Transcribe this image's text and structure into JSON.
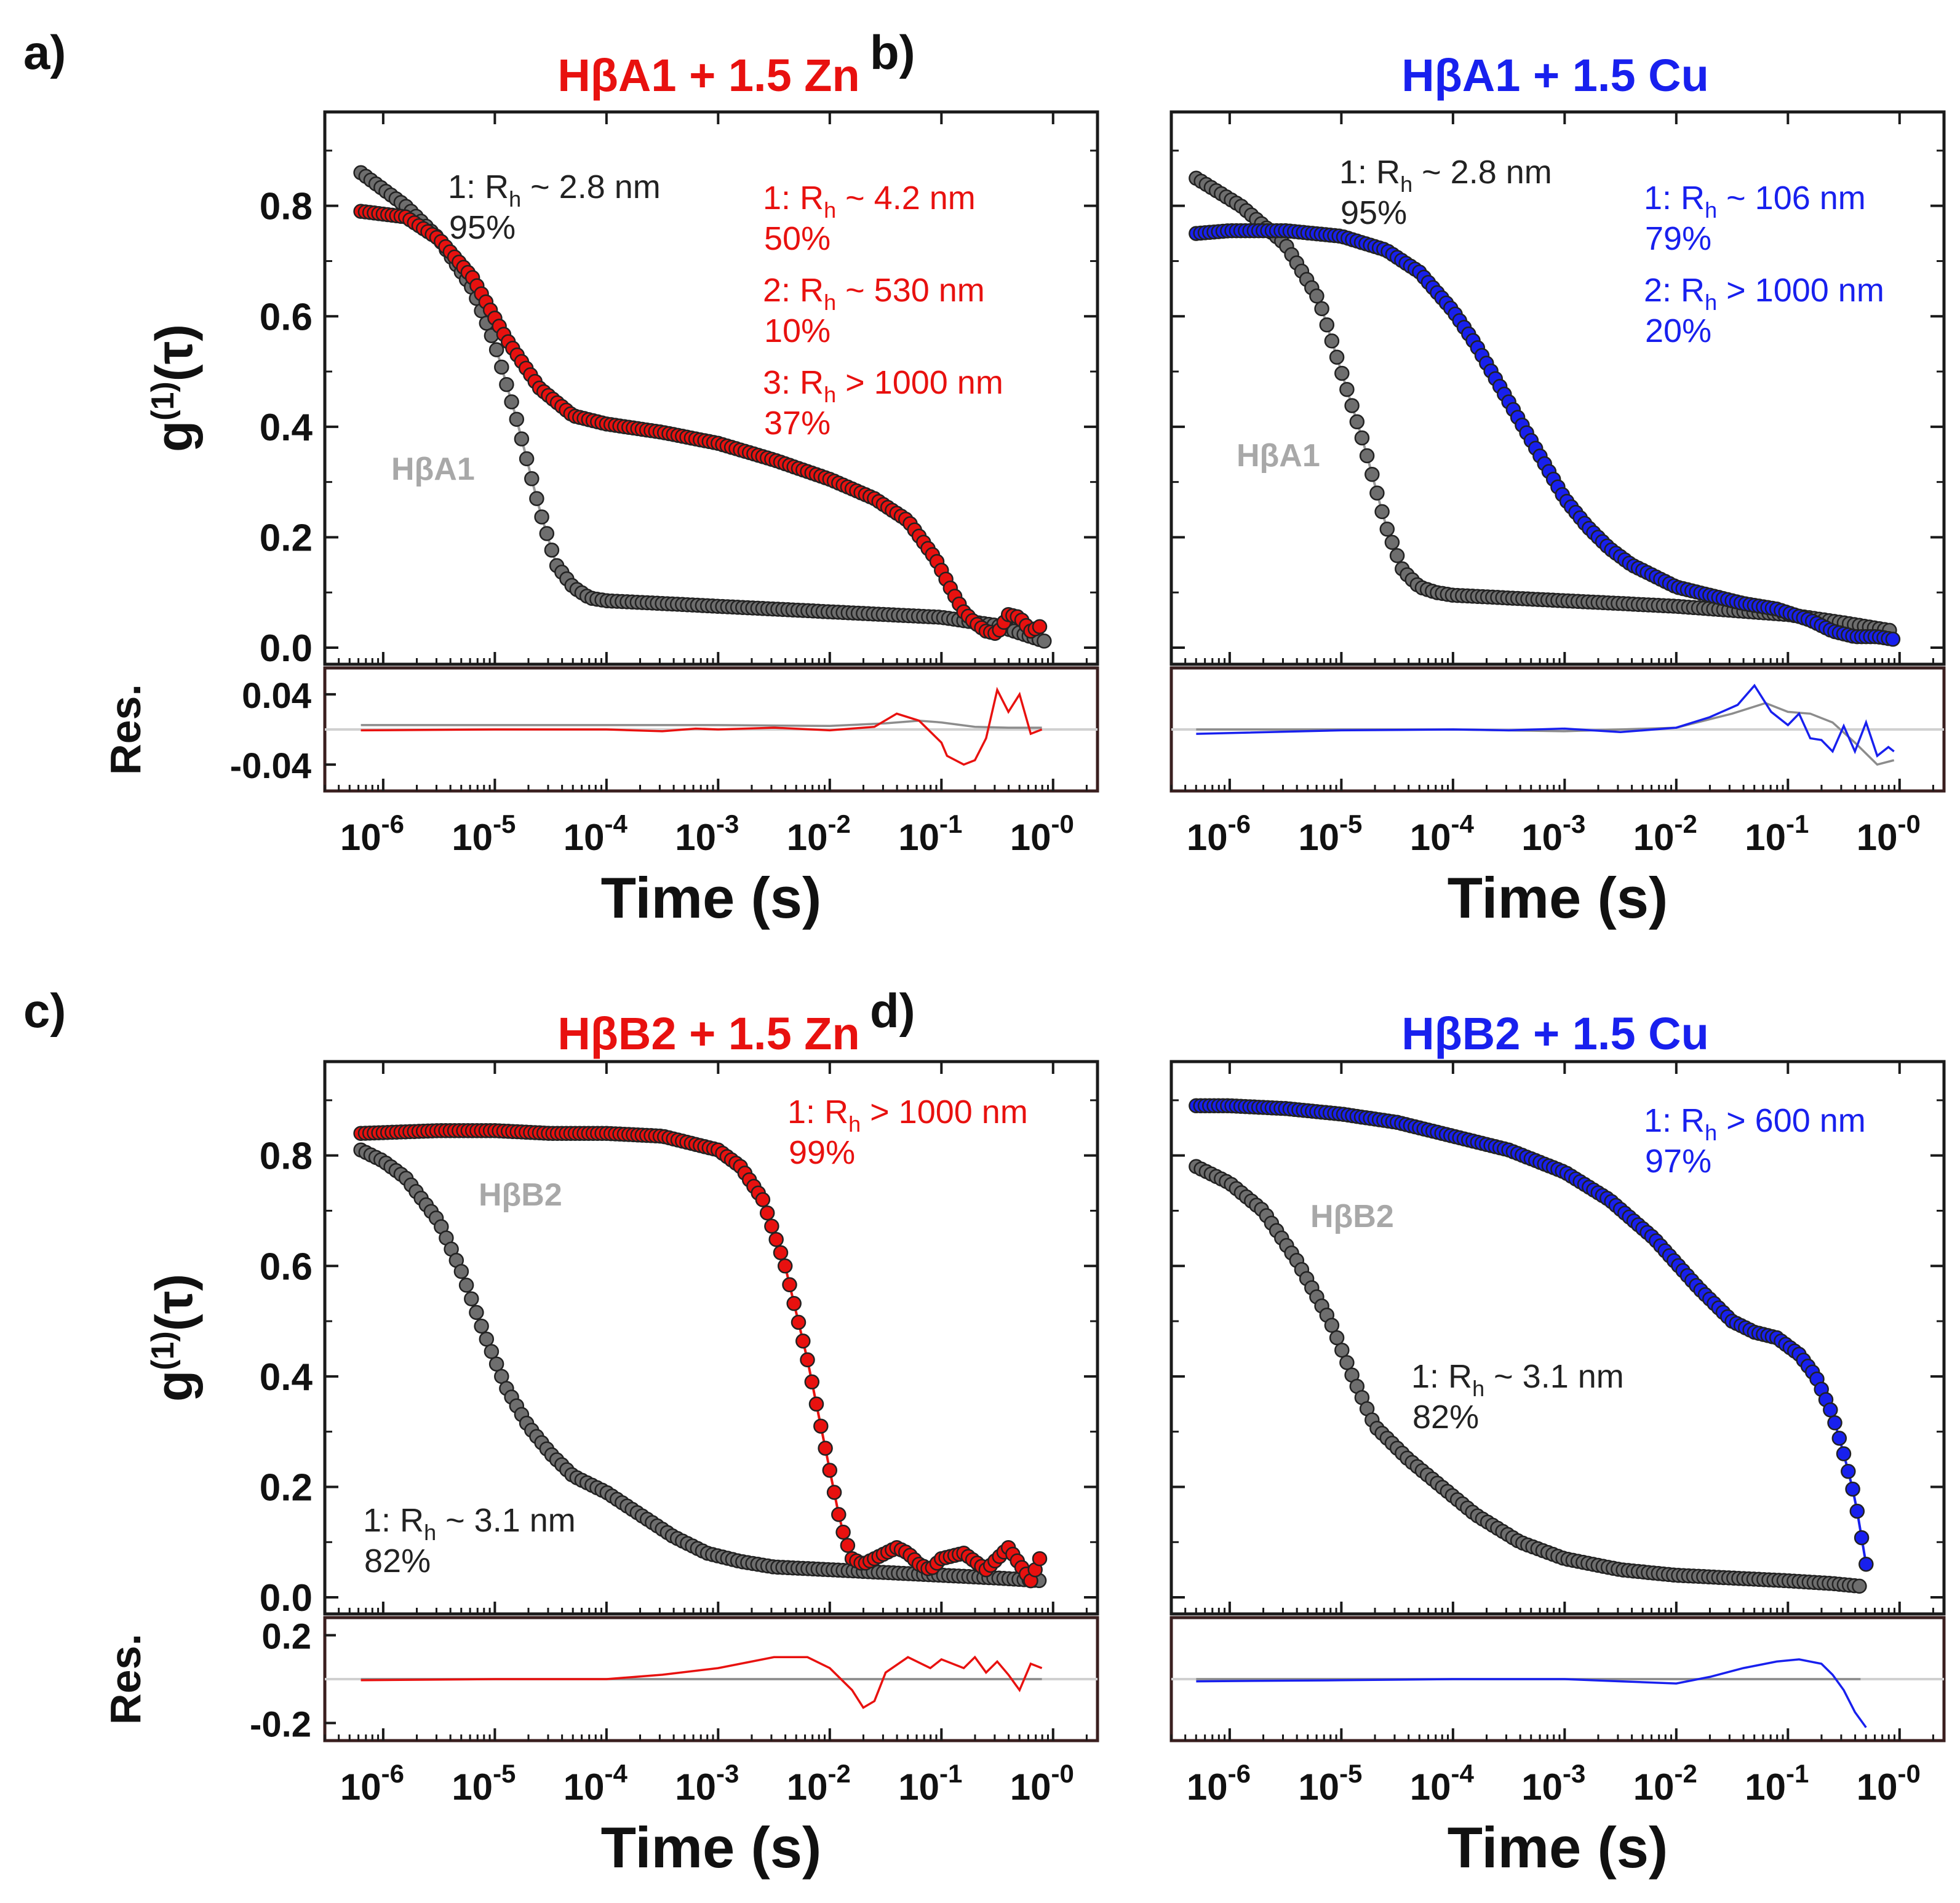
{
  "colors": {
    "zinc": "#e8110f",
    "copper": "#1820ee",
    "apo": "#777777",
    "apo_fill": "#6e6e6e",
    "apo_line": "#9a9a9a",
    "frame": "#1a1a1a",
    "res_frame": "#3a1f1f"
  },
  "common": {
    "y_label_main": "g",
    "y_label_sup": "(1)",
    "y_label_tail": "(τ)",
    "res_label": "Res.",
    "x_label": "Time (s)",
    "x_tick_base": "10",
    "x_tick_exponents": [
      "-6",
      "-5",
      "-4",
      "-3",
      "-2",
      "-1",
      "-0"
    ],
    "y_ticks": [
      "0.0",
      "0.2",
      "0.4",
      "0.6",
      "0.8"
    ]
  },
  "chart_data": [
    {
      "type": "scatter",
      "panel_letter": "a)",
      "title": "HβA1 + 1.5 Zn",
      "title_color": "#e8110f",
      "xlabel": "Time (s)",
      "ylabel": "g(1)(τ)",
      "xscale": "log",
      "xlim": [
        3e-07,
        2.5
      ],
      "ylim": [
        -0.03,
        0.97
      ],
      "apo_label": "HβA1",
      "res_ticks": [
        "0.04",
        "-0.04"
      ],
      "res_tick_values": [
        0.04,
        -0.04
      ],
      "res_lim": [
        -0.07,
        0.07
      ],
      "annotations": [
        {
          "group": "apo",
          "lines": [
            {
              "n": "1",
              "rel": "~",
              "value": "2.8 nm"
            }
          ],
          "percent": "95%"
        },
        {
          "group": "metal",
          "lines": [
            {
              "n": "1",
              "rel": "~",
              "value": "4.2 nm"
            }
          ],
          "percent": "50%"
        },
        {
          "group": "metal",
          "lines": [
            {
              "n": "2",
              "rel": "~",
              "value": "530 nm"
            }
          ],
          "percent": "10%"
        },
        {
          "group": "metal",
          "lines": [
            {
              "n": "3",
              "rel": ">",
              "value": "1000 nm"
            }
          ],
          "percent": "37%"
        }
      ],
      "series": [
        {
          "name": "HβA1",
          "role": "apo",
          "log_t": [
            -6.2,
            -5.8,
            -5.5,
            -5.2,
            -5.0,
            -4.8,
            -4.6,
            -4.45,
            -4.3,
            -4.15,
            -4.0,
            -3.5,
            -3.0,
            -2.0,
            -1.0,
            -0.5,
            -0.2,
            -0.05
          ],
          "g": [
            0.86,
            0.8,
            0.74,
            0.65,
            0.55,
            0.41,
            0.25,
            0.15,
            0.11,
            0.09,
            0.085,
            0.08,
            0.075,
            0.065,
            0.055,
            0.04,
            0.02,
            0.01
          ]
        },
        {
          "name": "HβA1 + 1.5 Zn",
          "role": "metal",
          "log_t": [
            -6.2,
            -5.8,
            -5.5,
            -5.2,
            -4.9,
            -4.6,
            -4.3,
            -4.0,
            -3.5,
            -3.0,
            -2.5,
            -2.0,
            -1.6,
            -1.3,
            -1.05,
            -0.9,
            -0.8,
            -0.7,
            -0.6,
            -0.5,
            -0.4,
            -0.3,
            -0.2,
            -0.1
          ],
          "g": [
            0.79,
            0.78,
            0.74,
            0.67,
            0.56,
            0.47,
            0.42,
            0.405,
            0.39,
            0.37,
            0.34,
            0.305,
            0.27,
            0.23,
            0.16,
            0.1,
            0.065,
            0.045,
            0.03,
            0.025,
            0.06,
            0.055,
            0.03,
            0.04
          ]
        }
      ],
      "residuals": [
        {
          "name": "apo",
          "log_t": [
            -6.2,
            -5.0,
            -4.0,
            -3.0,
            -2.0,
            -1.5,
            -1.2,
            -1.0,
            -0.7,
            -0.4,
            -0.1
          ],
          "r": [
            0.005,
            0.005,
            0.005,
            0.005,
            0.004,
            0.007,
            0.01,
            0.008,
            0.003,
            0.002,
            0.002
          ]
        },
        {
          "name": "metal",
          "log_t": [
            -6.2,
            -5.0,
            -4.0,
            -3.5,
            -3.2,
            -3.0,
            -2.5,
            -2.0,
            -1.6,
            -1.4,
            -1.2,
            -1.0,
            -0.95,
            -0.8,
            -0.7,
            -0.6,
            -0.5,
            -0.4,
            -0.3,
            -0.2,
            -0.1
          ],
          "r": [
            -0.001,
            0.0,
            0.0,
            -0.002,
            0.001,
            0.0,
            0.002,
            -0.001,
            0.003,
            0.018,
            0.01,
            -0.015,
            -0.03,
            -0.04,
            -0.035,
            -0.01,
            0.045,
            0.02,
            0.04,
            -0.005,
            0.0
          ]
        }
      ]
    },
    {
      "type": "scatter",
      "panel_letter": "b)",
      "title": "HβA1 + 1.5 Cu",
      "title_color": "#1820ee",
      "xlabel": "Time (s)",
      "ylabel": "g(1)(τ)",
      "xscale": "log",
      "xlim": [
        3e-07,
        2.5
      ],
      "ylim": [
        -0.03,
        0.97
      ],
      "apo_label": "HβA1",
      "res_ticks": [],
      "res_tick_values": [],
      "res_lim": [
        -0.07,
        0.07
      ],
      "annotations": [
        {
          "group": "apo",
          "lines": [
            {
              "n": "1",
              "rel": "~",
              "value": "2.8 nm"
            }
          ],
          "percent": "95%"
        },
        {
          "group": "metal",
          "lines": [
            {
              "n": "1",
              "rel": "~",
              "value": "106 nm"
            }
          ],
          "percent": "79%"
        },
        {
          "group": "metal",
          "lines": [
            {
              "n": "2",
              "rel": ">",
              "value": "1000 nm"
            }
          ],
          "percent": "20%"
        }
      ],
      "series": [
        {
          "name": "HβA1",
          "role": "apo",
          "log_t": [
            -6.3,
            -5.9,
            -5.5,
            -5.2,
            -5.0,
            -4.8,
            -4.6,
            -4.45,
            -4.3,
            -4.15,
            -4.0,
            -3.5,
            -3.0,
            -2.0,
            -1.0,
            -0.5,
            -0.2,
            -0.05
          ],
          "g": [
            0.85,
            0.8,
            0.73,
            0.63,
            0.5,
            0.37,
            0.22,
            0.14,
            0.11,
            0.1,
            0.095,
            0.09,
            0.085,
            0.075,
            0.06,
            0.045,
            0.035,
            0.03
          ]
        },
        {
          "name": "HβA1 + 1.5 Cu",
          "role": "metal",
          "log_t": [
            -6.3,
            -6.0,
            -5.5,
            -5.0,
            -4.6,
            -4.3,
            -4.0,
            -3.8,
            -3.6,
            -3.4,
            -3.2,
            -3.0,
            -2.8,
            -2.6,
            -2.4,
            -2.2,
            -2.0,
            -1.7,
            -1.4,
            -1.1,
            -0.8,
            -0.6,
            -0.4,
            -0.2,
            -0.05
          ],
          "g": [
            0.75,
            0.755,
            0.755,
            0.745,
            0.72,
            0.68,
            0.61,
            0.55,
            0.48,
            0.41,
            0.34,
            0.27,
            0.22,
            0.18,
            0.15,
            0.13,
            0.11,
            0.095,
            0.08,
            0.07,
            0.05,
            0.03,
            0.02,
            0.02,
            0.015
          ]
        }
      ],
      "residuals": [
        {
          "name": "apo",
          "log_t": [
            -6.3,
            -5.0,
            -4.0,
            -3.0,
            -2.0,
            -1.5,
            -1.2,
            -1.0,
            -0.8,
            -0.6,
            -0.4,
            -0.2,
            -0.05
          ],
          "r": [
            0.0,
            0.0,
            0.0,
            -0.002,
            0.002,
            0.018,
            0.03,
            0.02,
            0.018,
            0.008,
            -0.015,
            -0.04,
            -0.035
          ]
        },
        {
          "name": "metal",
          "log_t": [
            -6.3,
            -5.0,
            -4.0,
            -3.5,
            -3.0,
            -2.5,
            -2.0,
            -1.7,
            -1.45,
            -1.3,
            -1.15,
            -1.0,
            -0.9,
            -0.8,
            -0.7,
            -0.6,
            -0.5,
            -0.4,
            -0.3,
            -0.2,
            -0.1,
            -0.05
          ],
          "r": [
            -0.005,
            -0.001,
            0.0,
            -0.001,
            0.001,
            -0.003,
            0.002,
            0.014,
            0.028,
            0.05,
            0.02,
            0.005,
            0.018,
            -0.01,
            -0.012,
            -0.025,
            0.004,
            -0.025,
            0.008,
            -0.03,
            -0.02,
            -0.025
          ]
        }
      ]
    },
    {
      "type": "scatter",
      "panel_letter": "c)",
      "title": "HβB2 + 1.5 Zn",
      "title_color": "#e8110f",
      "xlabel": "Time (s)",
      "ylabel": "g(1)(τ)",
      "xscale": "log",
      "xlim": [
        3e-07,
        2.5
      ],
      "ylim": [
        -0.03,
        0.97
      ],
      "apo_label": "HβB2",
      "res_ticks": [
        "0.2",
        "-0.2"
      ],
      "res_tick_values": [
        0.2,
        -0.2
      ],
      "res_lim": [
        -0.28,
        0.28
      ],
      "annotations": [
        {
          "group": "metal",
          "lines": [
            {
              "n": "1",
              "rel": ">",
              "value": "1000 nm"
            }
          ],
          "percent": "99%"
        },
        {
          "group": "apo",
          "lines": [
            {
              "n": "1",
              "rel": "~",
              "value": "3.1 nm"
            }
          ],
          "percent": "82%"
        }
      ],
      "series": [
        {
          "name": "HβB2",
          "role": "apo",
          "log_t": [
            -6.2,
            -6.0,
            -5.8,
            -5.5,
            -5.3,
            -5.1,
            -4.9,
            -4.7,
            -4.5,
            -4.3,
            -4.0,
            -3.7,
            -3.4,
            -3.1,
            -2.8,
            -2.5,
            -2.0,
            -1.5,
            -1.0,
            -0.5,
            -0.1
          ],
          "g": [
            0.81,
            0.79,
            0.76,
            0.68,
            0.59,
            0.48,
            0.38,
            0.31,
            0.26,
            0.22,
            0.19,
            0.15,
            0.11,
            0.08,
            0.065,
            0.055,
            0.05,
            0.045,
            0.04,
            0.035,
            0.03
          ]
        },
        {
          "name": "HβB2 + 1.5 Zn",
          "role": "metal",
          "log_t": [
            -6.2,
            -5.5,
            -5.0,
            -4.5,
            -4.0,
            -3.5,
            -3.0,
            -2.8,
            -2.6,
            -2.4,
            -2.2,
            -2.1,
            -2.0,
            -1.9,
            -1.8,
            -1.7,
            -1.6,
            -1.5,
            -1.4,
            -1.3,
            -1.2,
            -1.1,
            -1.0,
            -0.8,
            -0.6,
            -0.4,
            -0.3,
            -0.2,
            -0.1
          ],
          "g": [
            0.84,
            0.845,
            0.845,
            0.84,
            0.84,
            0.835,
            0.81,
            0.78,
            0.72,
            0.6,
            0.43,
            0.33,
            0.23,
            0.13,
            0.07,
            0.06,
            0.07,
            0.08,
            0.09,
            0.08,
            0.06,
            0.05,
            0.07,
            0.08,
            0.05,
            0.09,
            0.06,
            0.03,
            0.08
          ]
        }
      ],
      "residuals": [
        {
          "name": "apo",
          "log_t": [
            -6.2,
            -5.0,
            -4.0,
            -3.0,
            -2.0,
            -1.0,
            -0.5,
            -0.1
          ],
          "r": [
            0.0,
            0.0,
            0.0,
            0.0,
            0.0,
            0.0,
            0.0,
            0.0
          ]
        },
        {
          "name": "metal",
          "log_t": [
            -6.2,
            -5.0,
            -4.0,
            -3.5,
            -3.0,
            -2.5,
            -2.2,
            -2.0,
            -1.8,
            -1.7,
            -1.6,
            -1.5,
            -1.3,
            -1.1,
            -1.0,
            -0.8,
            -0.7,
            -0.6,
            -0.5,
            -0.4,
            -0.3,
            -0.2,
            -0.1
          ],
          "r": [
            -0.005,
            0.0,
            0.0,
            0.02,
            0.05,
            0.1,
            0.1,
            0.05,
            -0.05,
            -0.13,
            -0.1,
            0.03,
            0.1,
            0.05,
            0.09,
            0.05,
            0.1,
            0.03,
            0.08,
            0.02,
            -0.05,
            0.07,
            0.05
          ]
        }
      ]
    },
    {
      "type": "scatter",
      "panel_letter": "d)",
      "title": "HβB2 + 1.5 Cu",
      "title_color": "#1820ee",
      "xlabel": "Time (s)",
      "ylabel": "g(1)(τ)",
      "xscale": "log",
      "xlim": [
        3e-07,
        2.5
      ],
      "ylim": [
        -0.03,
        0.97
      ],
      "apo_label": "HβB2",
      "res_ticks": [],
      "res_tick_values": [],
      "res_lim": [
        -0.28,
        0.28
      ],
      "annotations": [
        {
          "group": "metal",
          "lines": [
            {
              "n": "1",
              "rel": ">",
              "value": "600 nm"
            }
          ],
          "percent": "97%"
        },
        {
          "group": "apo",
          "lines": [
            {
              "n": "1",
              "rel": "~",
              "value": "3.1 nm"
            }
          ],
          "percent": "82%"
        }
      ],
      "series": [
        {
          "name": "HβB2",
          "role": "apo",
          "log_t": [
            -6.3,
            -6.0,
            -5.7,
            -5.4,
            -5.1,
            -4.9,
            -4.7,
            -4.4,
            -4.1,
            -3.8,
            -3.4,
            -3.0,
            -2.5,
            -2.0,
            -1.5,
            -1.0,
            -0.6,
            -0.35
          ],
          "g": [
            0.78,
            0.75,
            0.7,
            0.61,
            0.5,
            0.4,
            0.31,
            0.25,
            0.2,
            0.15,
            0.1,
            0.07,
            0.05,
            0.04,
            0.035,
            0.03,
            0.025,
            0.02
          ]
        },
        {
          "name": "HβB2 + 1.5 Cu",
          "role": "metal",
          "log_t": [
            -6.3,
            -6.0,
            -5.5,
            -5.0,
            -4.5,
            -4.0,
            -3.5,
            -3.0,
            -2.6,
            -2.2,
            -1.8,
            -1.5,
            -1.3,
            -1.1,
            -0.9,
            -0.75,
            -0.6,
            -0.5,
            -0.45,
            -0.4,
            -0.35,
            -0.3
          ],
          "g": [
            0.89,
            0.89,
            0.885,
            0.875,
            0.86,
            0.835,
            0.81,
            0.77,
            0.72,
            0.65,
            0.56,
            0.5,
            0.48,
            0.47,
            0.44,
            0.4,
            0.33,
            0.26,
            0.22,
            0.18,
            0.12,
            0.06
          ]
        }
      ],
      "residuals": [
        {
          "name": "apo",
          "log_t": [
            -6.3,
            -5.0,
            -4.0,
            -3.0,
            -2.0,
            -1.0,
            -0.6,
            -0.35
          ],
          "r": [
            0.0,
            0.0,
            0.0,
            0.0,
            0.0,
            0.0,
            0.0,
            0.0
          ]
        },
        {
          "name": "metal",
          "log_t": [
            -6.3,
            -5.0,
            -4.0,
            -3.0,
            -2.5,
            -2.0,
            -1.7,
            -1.4,
            -1.1,
            -0.9,
            -0.7,
            -0.6,
            -0.5,
            -0.4,
            -0.3
          ],
          "r": [
            -0.01,
            -0.005,
            0.0,
            0.0,
            -0.01,
            -0.02,
            0.01,
            0.05,
            0.08,
            0.09,
            0.07,
            0.02,
            -0.05,
            -0.15,
            -0.22
          ]
        }
      ]
    }
  ]
}
